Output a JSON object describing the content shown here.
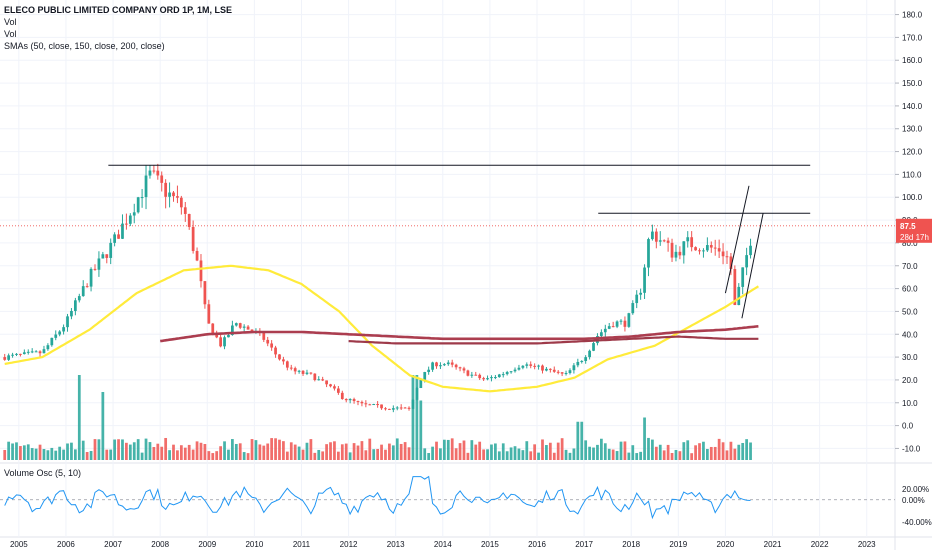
{
  "header": {
    "symbol_title": "ELECO PUBLIC LIMITED COMPANY ORD 1P, 1M, LSE",
    "indicator_1": "Vol",
    "indicator_2": "Vol",
    "indicator_3": "SMAs (50, close, 150, close, 200, close)"
  },
  "oscillator": {
    "label": "Volume Osc (5, 10)"
  },
  "price_badge": {
    "value": "87.5",
    "countdown": "28d 17h",
    "color": "#ef5350"
  },
  "colors": {
    "up": "#26a69a",
    "down": "#ef5350",
    "sma50": "#ffeb3b",
    "sma150": "#ab3d4f",
    "sma200": "#9e3a4a",
    "osc": "#2196f3",
    "grid": "#f0f3fa",
    "axis_text": "#131722"
  },
  "chart_data": [
    {
      "type": "candlestick",
      "title": "ELECO PUBLIC LIMITED COMPANY ORD 1P, 1M, LSE",
      "x_ticks": [
        "2005",
        "2006",
        "2007",
        "2008",
        "2009",
        "2010",
        "2011",
        "2012",
        "2013",
        "2014",
        "2015",
        "2016",
        "2017",
        "2018",
        "2019",
        "2020",
        "2021",
        "2022",
        "2023"
      ],
      "y_ticks": [
        "-10.0",
        "0.0",
        "10.0",
        "20.0",
        "30.0",
        "40.0",
        "50.0",
        "60.0",
        "70.0",
        "80.0",
        "90.0",
        "100.0",
        "110.0",
        "120.0",
        "130.0",
        "140.0",
        "150.0",
        "160.0",
        "170.0",
        "180.0"
      ],
      "ylim": [
        -12,
        182
      ],
      "close_anchors": [
        [
          "2004.7",
          30
        ],
        [
          "2005.5",
          32
        ],
        [
          "2006.0",
          45
        ],
        [
          "2006.5",
          65
        ],
        [
          "2007.0",
          80
        ],
        [
          "2007.4",
          95
        ],
        [
          "2007.8",
          110
        ],
        [
          "2008.0",
          105
        ],
        [
          "2008.5",
          95
        ],
        [
          "2008.8",
          70
        ],
        [
          "2009.0",
          45
        ],
        [
          "2009.3",
          35
        ],
        [
          "2009.6",
          45
        ],
        [
          "2009.9",
          42
        ],
        [
          "2010.2",
          38
        ],
        [
          "2010.5",
          30
        ],
        [
          "2010.8",
          24
        ],
        [
          "2011.2",
          22
        ],
        [
          "2011.6",
          17
        ],
        [
          "2011.9",
          12
        ],
        [
          "2012.3",
          9
        ],
        [
          "2012.8",
          8
        ],
        [
          "2013.3",
          7
        ],
        [
          "2013.5",
          20
        ],
        [
          "2013.8",
          27
        ],
        [
          "2014.1",
          27
        ],
        [
          "2014.5",
          23
        ],
        [
          "2014.9",
          20
        ],
        [
          "2015.3",
          23
        ],
        [
          "2015.7",
          27
        ],
        [
          "2016.1",
          25
        ],
        [
          "2016.6",
          22
        ],
        [
          "2017.0",
          30
        ],
        [
          "2017.3",
          40
        ],
        [
          "2017.6",
          45
        ],
        [
          "2017.9",
          45
        ],
        [
          "2018.2",
          60
        ],
        [
          "2018.4",
          85
        ],
        [
          "2018.7",
          80
        ],
        [
          "2018.9",
          75
        ],
        [
          "2019.2",
          80
        ],
        [
          "2019.6",
          78
        ],
        [
          "2019.9",
          77
        ],
        [
          "2020.1",
          72
        ],
        [
          "2020.2",
          52
        ],
        [
          "2020.4",
          70
        ],
        [
          "2020.6",
          87.5
        ]
      ],
      "sma50_anchors": [
        [
          "2004.7",
          27
        ],
        [
          "2005.5",
          30
        ],
        [
          "2006.5",
          42
        ],
        [
          "2007.5",
          58
        ],
        [
          "2008.5",
          68
        ],
        [
          "2009.5",
          70
        ],
        [
          "2010.3",
          68
        ],
        [
          "2011.0",
          62
        ],
        [
          "2011.8",
          50
        ],
        [
          "2012.5",
          35
        ],
        [
          "2013.3",
          22
        ],
        [
          "2014.0",
          17
        ],
        [
          "2015.0",
          15
        ],
        [
          "2016.0",
          17
        ],
        [
          "2016.8",
          21
        ],
        [
          "2017.5",
          29
        ],
        [
          "2018.5",
          35
        ],
        [
          "2019.3",
          44
        ],
        [
          "2020.0",
          52
        ],
        [
          "2020.7",
          61
        ]
      ],
      "sma150_anchors": [
        [
          "2008.0",
          37
        ],
        [
          "2009.0",
          40
        ],
        [
          "2010.0",
          41
        ],
        [
          "2011.0",
          41
        ],
        [
          "2012.0",
          40
        ],
        [
          "2013.0",
          39
        ],
        [
          "2014.0",
          38
        ],
        [
          "2015.0",
          38
        ],
        [
          "2016.0",
          38
        ],
        [
          "2017.0",
          38
        ],
        [
          "2018.0",
          39
        ],
        [
          "2019.0",
          41
        ],
        [
          "2020.0",
          42
        ],
        [
          "2020.7",
          43.5
        ]
      ],
      "sma200_anchors": [
        [
          "2012.0",
          37
        ],
        [
          "2013.0",
          36
        ],
        [
          "2014.0",
          36
        ],
        [
          "2015.0",
          36
        ],
        [
          "2016.0",
          36
        ],
        [
          "2017.0",
          37
        ],
        [
          "2018.0",
          38
        ],
        [
          "2019.0",
          39
        ],
        [
          "2020.0",
          38
        ],
        [
          "2020.7",
          38
        ]
      ],
      "horizontal_levels": [
        {
          "y": 114,
          "from": "2006.9",
          "to": "2021.8"
        },
        {
          "y": 93,
          "from": "2017.3",
          "to": "2021.8"
        }
      ],
      "trend_lines": [
        [
          [
            "2020.0",
            58
          ],
          [
            "2020.5",
            105
          ]
        ],
        [
          [
            "2020.35",
            47
          ],
          [
            "2020.8",
            93
          ]
        ]
      ],
      "volume_spikes": [
        [
          "2006.3",
          1.0
        ],
        [
          "2006.8",
          0.8
        ],
        [
          "2013.4",
          1.0
        ],
        [
          "2013.5",
          0.7
        ],
        [
          "2018.3",
          0.5
        ],
        [
          "2016.9",
          0.45
        ]
      ]
    },
    {
      "type": "line",
      "title": "Volume Osc (5, 10)",
      "y_ticks": [
        "20.00%",
        "0.00%",
        "-40.00%"
      ],
      "ylim": [
        -55,
        45
      ]
    }
  ]
}
